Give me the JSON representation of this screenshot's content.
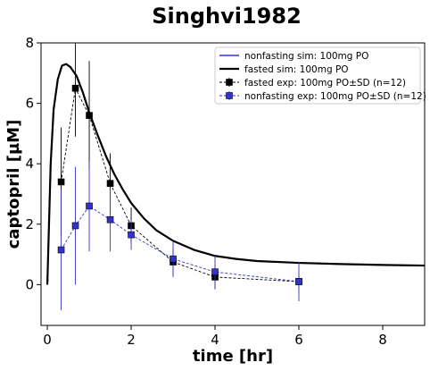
{
  "chart_data": {
    "type": "line",
    "title": "Singhvi1982",
    "xlabel": "time [hr]",
    "ylabel": "captopril [µM]",
    "xlim": [
      -0.15,
      9.0
    ],
    "ylim": [
      -1.35,
      8.0
    ],
    "xticks": [
      0,
      2,
      4,
      6,
      8
    ],
    "yticks": [
      0,
      2,
      4,
      6,
      8
    ],
    "grid": false,
    "legend_position": "top-right",
    "colors": {
      "nonfasting": "#3333dd",
      "fasted": "#000000",
      "nonfasting_marker": "#3333cc"
    },
    "series": [
      {
        "name": "nonfasting sim: 100mg PO",
        "kind": "line",
        "color": "#3333dd",
        "x": [
          0,
          0.08,
          0.15,
          0.25,
          0.35,
          0.45,
          0.55,
          0.7,
          0.85,
          1.0,
          1.2,
          1.4,
          1.6,
          1.8,
          2.0,
          2.3,
          2.6,
          3.0,
          3.5,
          4.0,
          4.5,
          5.0,
          6.0,
          7.0,
          8.0,
          9.0
        ],
        "y": [
          0,
          4.0,
          5.8,
          6.8,
          7.25,
          7.3,
          7.2,
          6.9,
          6.35,
          5.7,
          4.95,
          4.25,
          3.65,
          3.15,
          2.7,
          2.2,
          1.8,
          1.45,
          1.15,
          0.95,
          0.85,
          0.78,
          0.72,
          0.68,
          0.65,
          0.63
        ]
      },
      {
        "name": "fasted sim: 100mg PO",
        "kind": "line",
        "color": "#000000",
        "x": [
          0,
          0.08,
          0.15,
          0.25,
          0.35,
          0.45,
          0.55,
          0.7,
          0.85,
          1.0,
          1.2,
          1.4,
          1.6,
          1.8,
          2.0,
          2.3,
          2.6,
          3.0,
          3.5,
          4.0,
          4.5,
          5.0,
          6.0,
          7.0,
          8.0,
          9.0
        ],
        "y": [
          0,
          4.0,
          5.8,
          6.8,
          7.25,
          7.3,
          7.2,
          6.9,
          6.35,
          5.7,
          4.95,
          4.25,
          3.65,
          3.15,
          2.7,
          2.2,
          1.8,
          1.45,
          1.15,
          0.95,
          0.85,
          0.78,
          0.72,
          0.68,
          0.65,
          0.63
        ]
      },
      {
        "name": "fasted exp: 100mg PO±SD (n=12)",
        "kind": "errorbar",
        "color": "#000000",
        "x": [
          0.33,
          0.67,
          1.0,
          1.5,
          2.0,
          3.0,
          4.0,
          6.0
        ],
        "y": [
          3.4,
          6.5,
          5.6,
          3.35,
          1.95,
          0.75,
          0.25,
          0.1
        ],
        "err": [
          1.8,
          1.6,
          1.8,
          1.0,
          0.6,
          0.45,
          0.4,
          0.2
        ]
      },
      {
        "name": "nonfasting exp: 100mg PO±SD (n=12)",
        "kind": "errorbar",
        "color": "#3333cc",
        "x": [
          0.33,
          0.67,
          1.0,
          1.5,
          2.0,
          3.0,
          4.0,
          6.0
        ],
        "y": [
          1.15,
          1.95,
          2.6,
          2.15,
          1.65,
          0.85,
          0.42,
          0.1
        ],
        "err": [
          2.0,
          1.95,
          1.5,
          1.05,
          0.5,
          0.6,
          0.55,
          0.65
        ]
      }
    ]
  }
}
